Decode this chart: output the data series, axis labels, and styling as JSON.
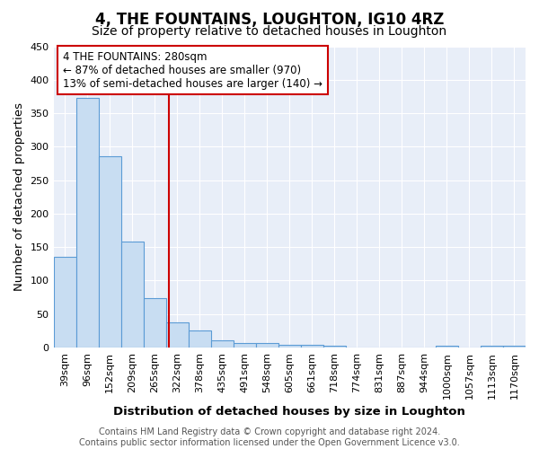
{
  "title": "4, THE FOUNTAINS, LOUGHTON, IG10 4RZ",
  "subtitle": "Size of property relative to detached houses in Loughton",
  "xlabel": "Distribution of detached houses by size in Loughton",
  "ylabel": "Number of detached properties",
  "categories": [
    "39sqm",
    "96sqm",
    "152sqm",
    "209sqm",
    "265sqm",
    "322sqm",
    "378sqm",
    "435sqm",
    "491sqm",
    "548sqm",
    "605sqm",
    "661sqm",
    "718sqm",
    "774sqm",
    "831sqm",
    "887sqm",
    "944sqm",
    "1000sqm",
    "1057sqm",
    "1113sqm",
    "1170sqm"
  ],
  "values": [
    136,
    373,
    285,
    158,
    74,
    37,
    25,
    10,
    6,
    7,
    4,
    4,
    3,
    0,
    0,
    0,
    0,
    3,
    0,
    3,
    3
  ],
  "bar_color": "#c8ddf2",
  "bar_edge_color": "#5b9bd5",
  "property_line_x": 4.65,
  "property_line_color": "#cc0000",
  "annotation_text": "4 THE FOUNTAINS: 280sqm\n← 87% of detached houses are smaller (970)\n13% of semi-detached houses are larger (140) →",
  "annotation_box_color": "#cc0000",
  "footer_text": "Contains HM Land Registry data © Crown copyright and database right 2024.\nContains public sector information licensed under the Open Government Licence v3.0.",
  "ylim": [
    0,
    450
  ],
  "yticks": [
    0,
    50,
    100,
    150,
    200,
    250,
    300,
    350,
    400,
    450
  ],
  "title_fontsize": 12,
  "subtitle_fontsize": 10,
  "axis_label_fontsize": 9.5,
  "tick_fontsize": 8,
  "annotation_fontsize": 8.5,
  "footer_fontsize": 7,
  "background_color": "#ffffff",
  "plot_background_color": "#e8eef8",
  "grid_color": "#ffffff"
}
